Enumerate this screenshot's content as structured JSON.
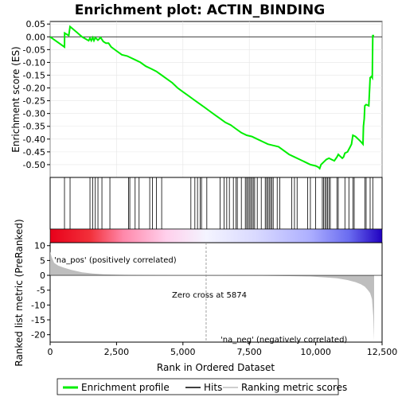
{
  "chart_data": {
    "type": "line",
    "title": "Enrichment plot: ACTIN_BINDING",
    "es_panel": {
      "ylabel": "Enrichment score (ES)",
      "ylim": [
        -0.55,
        0.06
      ],
      "yticks": [
        0.05,
        0.0,
        -0.05,
        -0.1,
        -0.15,
        -0.2,
        -0.25,
        -0.3,
        -0.35,
        -0.4,
        -0.45,
        -0.5
      ],
      "ytick_labels": [
        "0.05",
        "0.00",
        "-0.05",
        "-0.10",
        "-0.15",
        "-0.20",
        "-0.25",
        "-0.30",
        "-0.35",
        "-0.40",
        "-0.45",
        "-0.50"
      ],
      "series": [
        {
          "name": "Enrichment profile",
          "color": "#00ee00",
          "x": [
            0,
            540,
            545,
            700,
            750,
            1000,
            1200,
            1450,
            1500,
            1550,
            1600,
            1650,
            1700,
            1800,
            1900,
            2000,
            2100,
            2200,
            2300,
            2500,
            2700,
            2900,
            3000,
            3200,
            3400,
            3600,
            3800,
            4000,
            4200,
            4400,
            4600,
            4800,
            5000,
            5200,
            5400,
            5600,
            5800,
            6000,
            6200,
            6400,
            6600,
            6800,
            7000,
            7200,
            7400,
            7600,
            7800,
            8000,
            8200,
            8400,
            8600,
            8800,
            9000,
            9200,
            9400,
            9600,
            9800,
            10000,
            10100,
            10150,
            10200,
            10300,
            10400,
            10500,
            10600,
            10700,
            10800,
            10850,
            10900,
            11000,
            11050,
            11100,
            11200,
            11300,
            11350,
            11400,
            11500,
            11600,
            11700,
            11780,
            11800,
            11830,
            11850,
            11900,
            12000,
            12050,
            12100,
            12130,
            12150,
            12200
          ],
          "y": [
            0.0,
            -0.04,
            0.015,
            0.005,
            0.04,
            0.018,
            0.0,
            -0.015,
            -0.005,
            -0.015,
            -0.003,
            -0.015,
            -0.003,
            -0.013,
            -0.003,
            -0.018,
            -0.025,
            -0.025,
            -0.04,
            -0.055,
            -0.07,
            -0.075,
            -0.08,
            -0.09,
            -0.1,
            -0.115,
            -0.125,
            -0.135,
            -0.15,
            -0.165,
            -0.18,
            -0.2,
            -0.215,
            -0.23,
            -0.245,
            -0.26,
            -0.275,
            -0.29,
            -0.305,
            -0.32,
            -0.335,
            -0.345,
            -0.36,
            -0.375,
            -0.385,
            -0.39,
            -0.4,
            -0.41,
            -0.42,
            -0.425,
            -0.43,
            -0.445,
            -0.46,
            -0.47,
            -0.48,
            -0.49,
            -0.5,
            -0.505,
            -0.51,
            -0.515,
            -0.5,
            -0.49,
            -0.48,
            -0.475,
            -0.48,
            -0.485,
            -0.47,
            -0.46,
            -0.465,
            -0.475,
            -0.47,
            -0.455,
            -0.45,
            -0.43,
            -0.42,
            -0.385,
            -0.39,
            -0.4,
            -0.41,
            -0.42,
            -0.35,
            -0.32,
            -0.27,
            -0.265,
            -0.27,
            -0.16,
            -0.155,
            -0.16,
            0.005,
            0.005
          ]
        }
      ]
    },
    "hits_panel": {
      "series_name": "Hits",
      "hit_positions": [
        540,
        750,
        1500,
        1600,
        1700,
        1800,
        1950,
        2250,
        2950,
        3000,
        3200,
        3350,
        3750,
        3850,
        4000,
        4200,
        5300,
        5450,
        5550,
        5650,
        5700,
        5900,
        6400,
        6550,
        6650,
        6750,
        6900,
        7000,
        7050,
        7200,
        7350,
        7400,
        7450,
        7500,
        7550,
        7600,
        7650,
        7700,
        7800,
        7950,
        8100,
        8150,
        8200,
        8250,
        8300,
        8350,
        8400,
        8550,
        8650,
        9100,
        9200,
        9300,
        9700,
        9800,
        10000,
        10250,
        10300,
        10350,
        10400,
        10450,
        10500,
        10550,
        10800,
        10850,
        11100,
        11250,
        11400,
        11450,
        11850,
        11900,
        12050,
        12150
      ]
    },
    "ranked_metric_panel": {
      "series_name": "Ranking metric scores",
      "ylabel": "Ranked list metric (PreRanked)",
      "ylim": [
        -22.5,
        11
      ],
      "yticks": [
        10,
        5,
        0,
        -5,
        -10,
        -15,
        -20
      ],
      "ytick_labels": [
        "10",
        "5",
        "0",
        "-5",
        "-10",
        "-15",
        "-20"
      ],
      "x": [
        0,
        50,
        150,
        300,
        500,
        800,
        1200,
        1600,
        2000,
        2500,
        3000,
        4000,
        5000,
        5874,
        7000,
        8000,
        9000,
        9800,
        10400,
        10800,
        11200,
        11500,
        11700,
        11850,
        11950,
        12050,
        12120,
        12170,
        12200
      ],
      "values": [
        8.0,
        6.3,
        4.2,
        3.3,
        2.6,
        1.8,
        1.0,
        0.6,
        0.35,
        0.2,
        0.12,
        0.05,
        0.01,
        0.0,
        -0.05,
        -0.12,
        -0.25,
        -0.4,
        -0.7,
        -1.0,
        -1.6,
        -2.3,
        -3.0,
        -3.8,
        -4.8,
        -6.0,
        -8.0,
        -14.0,
        -22.0
      ],
      "positive_label": "'na_pos' (positively correlated)",
      "negative_label": "'na_neg' (negatively correlated)",
      "zero_cross_label": "Zero cross at 5874",
      "zero_cross": 5874
    },
    "xlabel": "Rank in Ordered Dataset",
    "xlim": [
      0,
      12500
    ],
    "xticks": [
      0,
      2500,
      5000,
      7500,
      10000,
      12500
    ],
    "xtick_labels": [
      "0",
      "2,500",
      "5,000",
      "7,500",
      "10,000",
      "12,500"
    ],
    "legend": {
      "placement": "bottom",
      "items": [
        "Enrichment profile",
        "Hits",
        "Ranking metric scores"
      ]
    },
    "colors": {
      "profile": "#00ee00",
      "hits": "#000000",
      "metric_fill": "#bebebe",
      "zero_line": "#888888",
      "positive_text": "#cc0000",
      "negative_text": "#0000cc"
    }
  }
}
